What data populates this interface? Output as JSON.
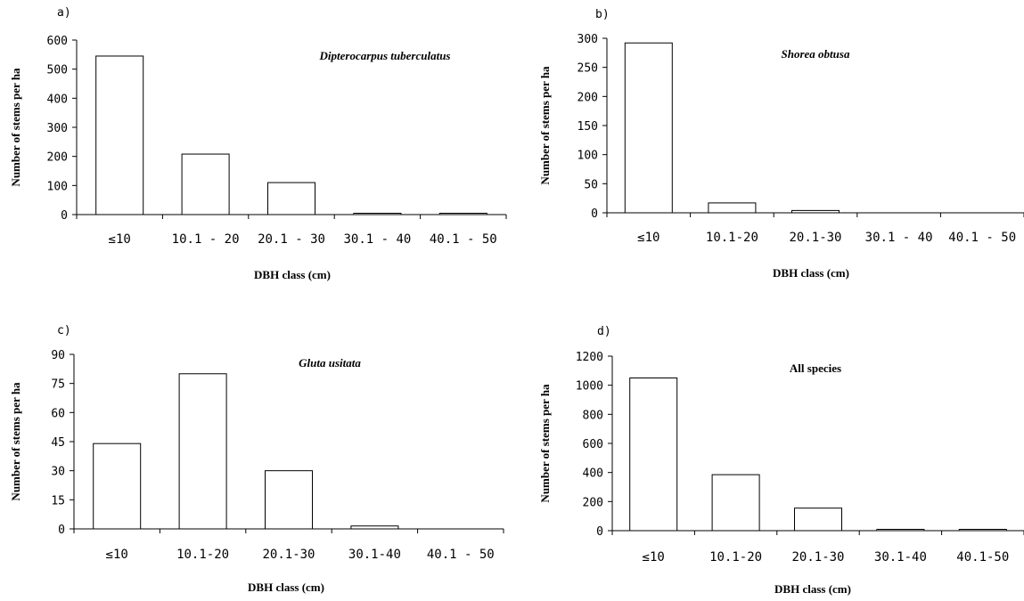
{
  "chart_data": [
    {
      "panel_label": "a)",
      "type": "bar",
      "title": "Dipterocarpus  tuberculatus",
      "xlabel": "DBH class (cm)",
      "ylabel": "Number of stems per ha",
      "categories": [
        "≤10",
        "10.1 - 20",
        "20.1 - 30",
        "30.1 - 40",
        "40.1 - 50"
      ],
      "values": [
        545,
        208,
        110,
        4,
        3
      ],
      "ylim": [
        0,
        600
      ],
      "yticks": [
        0,
        100,
        200,
        300,
        400,
        500,
        600
      ],
      "grid": false
    },
    {
      "panel_label": "b)",
      "type": "bar",
      "title": "Shorea  obtusa",
      "xlabel": "DBH class (cm)",
      "ylabel": "Number of stems per ha",
      "categories": [
        "≤10",
        "10.1-20",
        "20.1-30",
        "30.1 - 40",
        "40.1 - 50"
      ],
      "values": [
        292,
        17,
        4,
        0,
        0
      ],
      "ylim": [
        0,
        300
      ],
      "yticks": [
        0,
        50,
        100,
        150,
        200,
        250,
        300
      ],
      "grid": false
    },
    {
      "panel_label": "c)",
      "type": "bar",
      "title": "Gluta  usitata",
      "xlabel": "DBH class (cm)",
      "ylabel": "Number of stems per ha",
      "categories": [
        "≤10",
        "10.1-20",
        "20.1-30",
        "30.1-40",
        "40.1 - 50"
      ],
      "values": [
        44,
        80,
        30,
        1.5,
        0
      ],
      "ylim": [
        0,
        90
      ],
      "yticks": [
        0,
        15,
        30,
        45,
        60,
        75,
        90
      ],
      "grid": false
    },
    {
      "panel_label": "d)",
      "type": "bar",
      "title": "All species",
      "xlabel": "DBH class (cm)",
      "ylabel": "Number of stems per ha",
      "categories": [
        "≤10",
        "10.1-20",
        "20.1-30",
        "30.1-40",
        "40.1-50"
      ],
      "values": [
        1050,
        385,
        155,
        6,
        4
      ],
      "ylim": [
        0,
        1200
      ],
      "yticks": [
        0,
        200,
        400,
        600,
        800,
        1000,
        1200
      ],
      "grid": false
    }
  ]
}
